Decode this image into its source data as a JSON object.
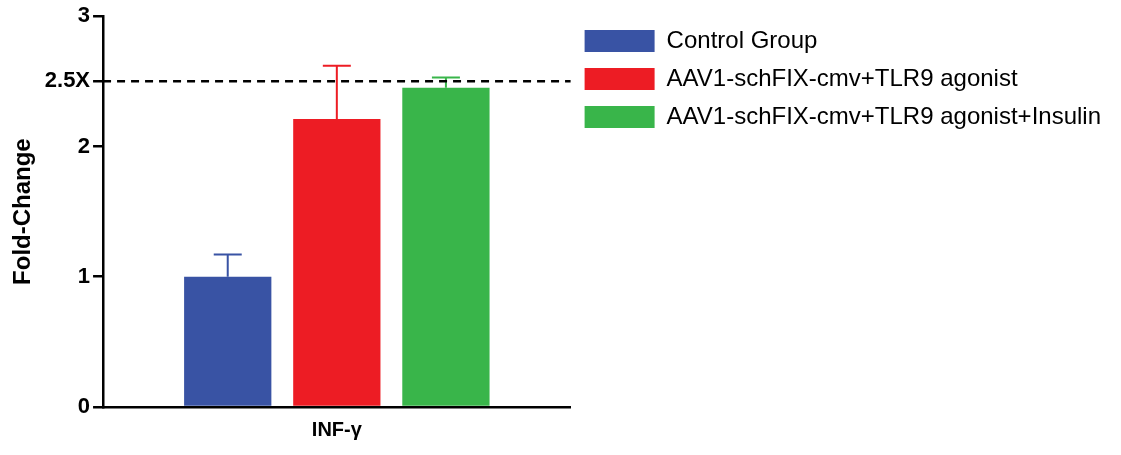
{
  "chart_data": {
    "type": "bar",
    "ylabel": "Fold-Change",
    "categories": [
      "INF-γ"
    ],
    "series": [
      {
        "name": "Control Group",
        "color": "#3953a4",
        "values": [
          1.0
        ],
        "errors": [
          [
            1.0,
            1.17
          ]
        ]
      },
      {
        "name": "AAV1-schFIX-cmv+TLR9 agonist",
        "color": "#ed1c24",
        "values": [
          2.21
        ],
        "errors": [
          [
            2.21,
            2.62
          ]
        ]
      },
      {
        "name": "AAV1-schFIX-cmv+TLR9 agonist+Insulin",
        "color": "#39b54a",
        "values": [
          2.45
        ],
        "errors": [
          [
            2.45,
            2.53
          ]
        ]
      }
    ],
    "ylim": [
      0,
      3
    ],
    "yticks": [
      0,
      1,
      2,
      {
        "value": 2.5,
        "label": "2.5X"
      },
      3
    ],
    "ref_lines": [
      {
        "axis": "y",
        "value": 2.5,
        "line_style": "dashed",
        "color": "#000000"
      }
    ],
    "grid": false,
    "legend": "top right"
  }
}
